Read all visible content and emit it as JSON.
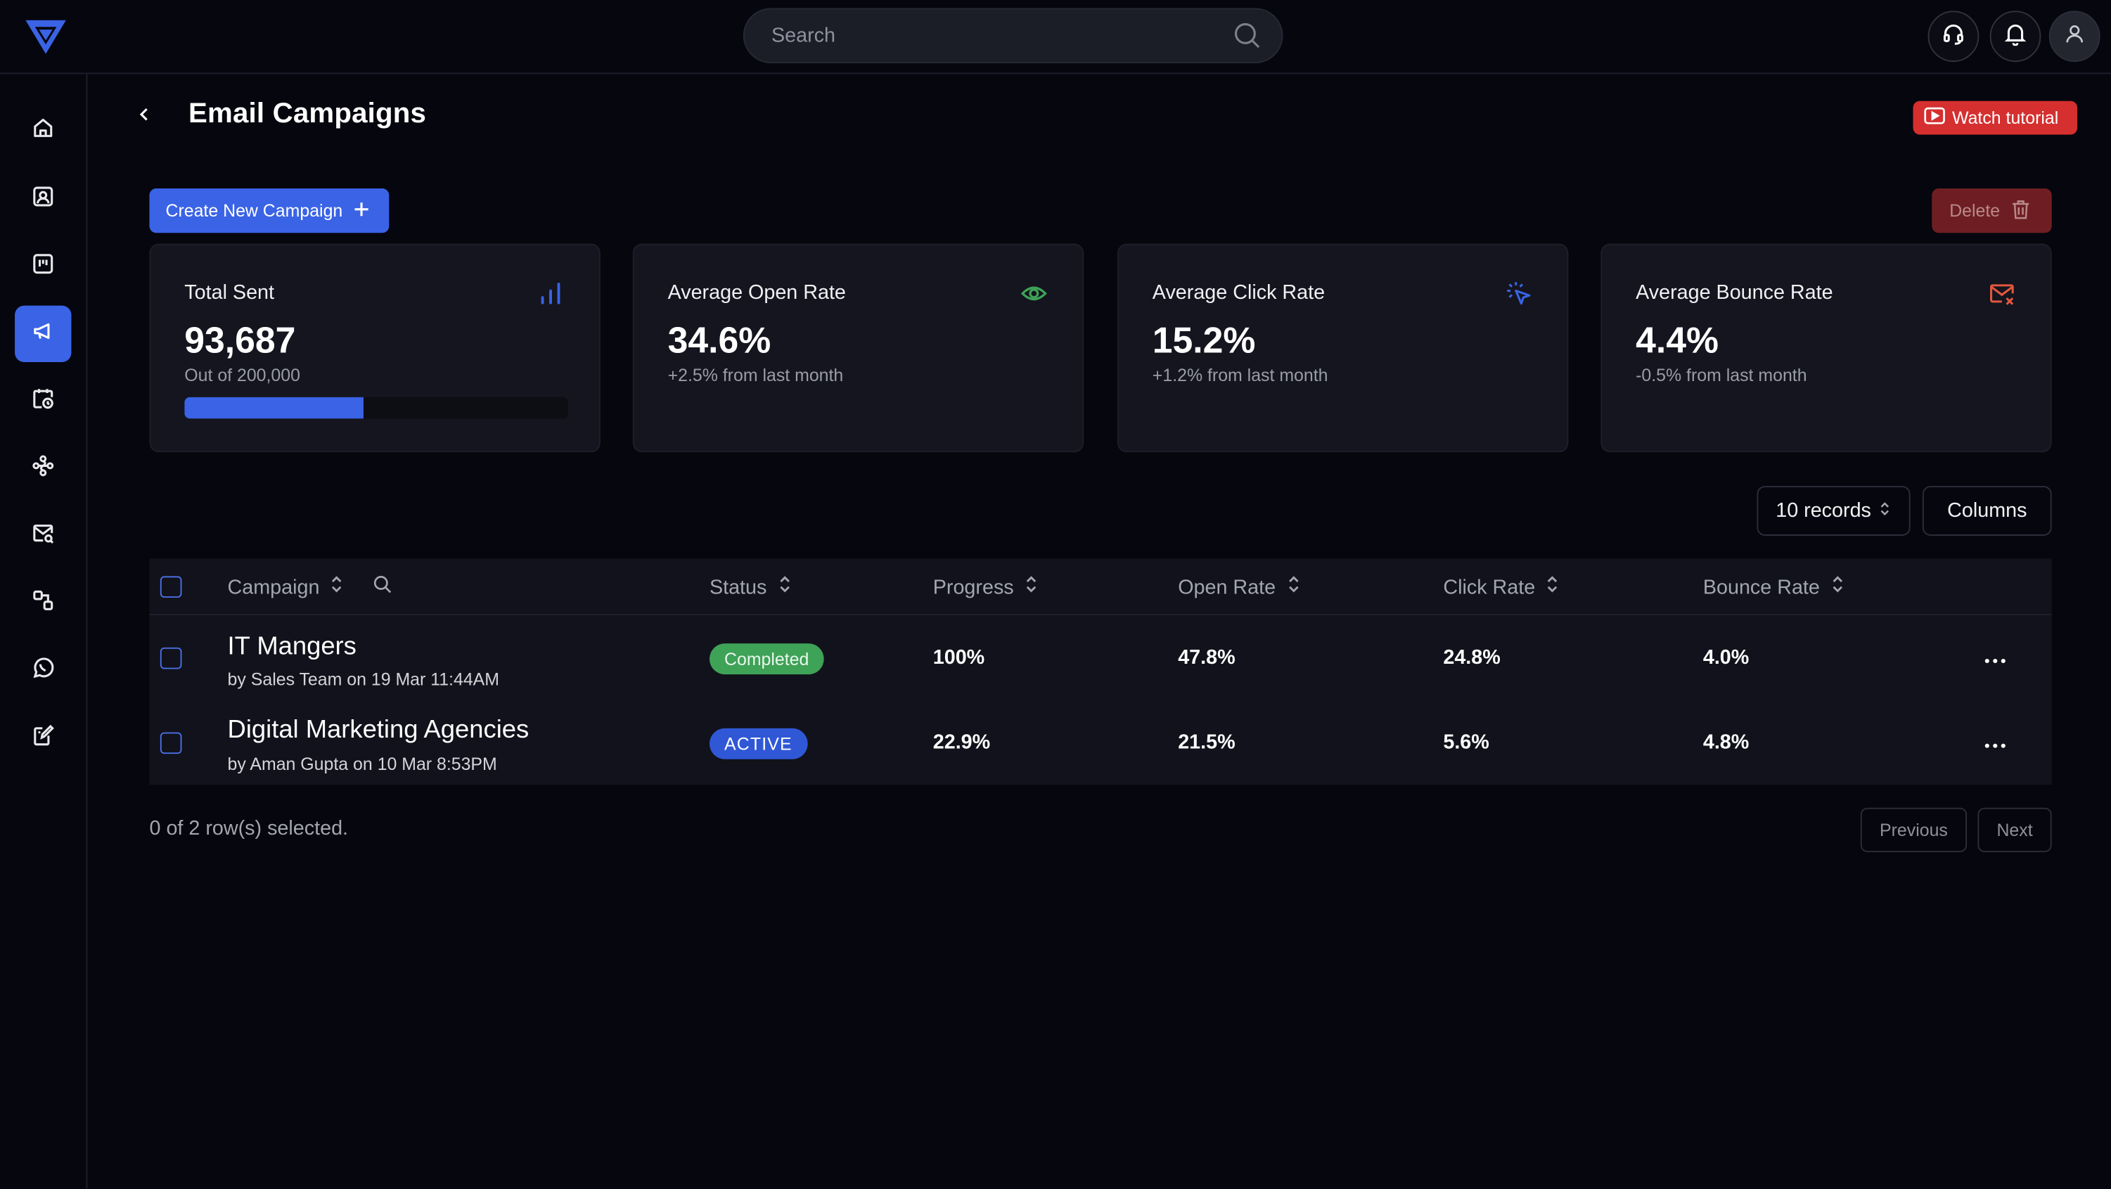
{
  "search": {
    "placeholder": "Search"
  },
  "header": {
    "title": "Email Campaigns",
    "watch_tutorial": "Watch tutorial"
  },
  "toolbar": {
    "create_label": "Create New Campaign",
    "delete_label": "Delete"
  },
  "sidebar": {
    "items": [
      {
        "name": "home",
        "icon": "home-icon"
      },
      {
        "name": "contacts",
        "icon": "contact-icon"
      },
      {
        "name": "board",
        "icon": "board-icon"
      },
      {
        "name": "campaigns",
        "icon": "megaphone-icon",
        "active": true
      },
      {
        "name": "schedule",
        "icon": "calendar-clock-icon"
      },
      {
        "name": "workflows",
        "icon": "workflow-icon"
      },
      {
        "name": "email-search",
        "icon": "mail-search-icon"
      },
      {
        "name": "integrations",
        "icon": "shapes-icon"
      },
      {
        "name": "whatsapp",
        "icon": "whatsapp-icon"
      },
      {
        "name": "notes",
        "icon": "edit-note-icon"
      }
    ]
  },
  "stats": [
    {
      "title": "Total Sent",
      "value": "93,687",
      "sub": "Out of 200,000",
      "icon": "bar-chart-icon",
      "color": "#3a63e6",
      "progress": 0.468
    },
    {
      "title": "Average Open Rate",
      "value": "34.6%",
      "sub": "+2.5% from last month",
      "icon": "eye-icon",
      "color": "#3ea257"
    },
    {
      "title": "Average Click Rate",
      "value": "15.2%",
      "sub": "+1.2% from last month",
      "icon": "cursor-click-icon",
      "color": "#3a63e6"
    },
    {
      "title": "Average Bounce Rate",
      "value": "4.4%",
      "sub": "-0.5% from last month",
      "icon": "mail-x-icon",
      "color": "#e2573f"
    }
  ],
  "records": {
    "label": "10 records",
    "columns_label": "Columns"
  },
  "table": {
    "headers": {
      "campaign": "Campaign",
      "status": "Status",
      "progress": "Progress",
      "open_rate": "Open Rate",
      "click_rate": "Click Rate",
      "bounce_rate": "Bounce Rate"
    },
    "rows": [
      {
        "name": "IT Mangers",
        "meta": "by Sales Team on 19 Mar 11:44AM",
        "status": "Completed",
        "progress": "100%",
        "open_rate": "47.8%",
        "click_rate": "24.8%",
        "bounce_rate": "4.0%"
      },
      {
        "name": "Digital Marketing Agencies",
        "meta": "by Aman Gupta on 10 Mar 8:53PM",
        "status": "ACTIVE",
        "progress": "22.9%",
        "open_rate": "21.5%",
        "click_rate": "5.6%",
        "bounce_rate": "4.8%"
      }
    ]
  },
  "footer": {
    "selection": "0 of 2 row(s) selected.",
    "previous": "Previous",
    "next": "Next"
  },
  "colors": {
    "accent": "#3a63e6",
    "danger": "#d52f2f",
    "success": "#3ea257",
    "background": "#06060e"
  }
}
